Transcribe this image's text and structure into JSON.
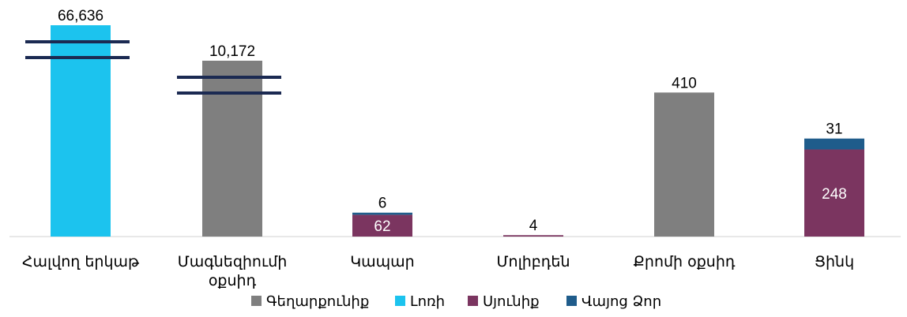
{
  "chart_data": {
    "type": "bar",
    "stacked": true,
    "axis_breaks": [
      "Հալվող երկաթ",
      "Մագնեզիումի օքսիդ"
    ],
    "categories": [
      [
        "Հալվող երկաթ"
      ],
      [
        "Մագնեզիումի",
        "օքսիդ"
      ],
      [
        "Կապար"
      ],
      [
        "Մոլիբդեն"
      ],
      [
        "Քրոմի օքսիդ"
      ],
      [
        "Ցինկ"
      ]
    ],
    "series": [
      {
        "name": "Գեղարքունիք",
        "color": "#7f7f7f",
        "values": [
          0,
          10172,
          0,
          0,
          410,
          0
        ],
        "labels": [
          "",
          "10,172",
          "",
          "",
          "410",
          ""
        ]
      },
      {
        "name": "Լոռի",
        "color": "#1cc3ee",
        "values": [
          66636,
          0,
          0,
          0,
          0,
          0
        ],
        "labels": [
          "66,636",
          "",
          "",
          "",
          "",
          ""
        ]
      },
      {
        "name": "Սյունիք",
        "color": "#7b3560",
        "values": [
          0,
          0,
          62,
          4,
          0,
          248
        ],
        "labels": [
          "",
          "",
          "62",
          "4",
          "",
          "248"
        ]
      },
      {
        "name": "Վայոց Ձոր",
        "color": "#1f5c8b",
        "values": [
          0,
          0,
          6,
          0,
          0,
          31
        ],
        "labels": [
          "",
          "",
          "6",
          "",
          "",
          "31"
        ]
      }
    ],
    "legend_position": "bottom",
    "grid": false
  }
}
